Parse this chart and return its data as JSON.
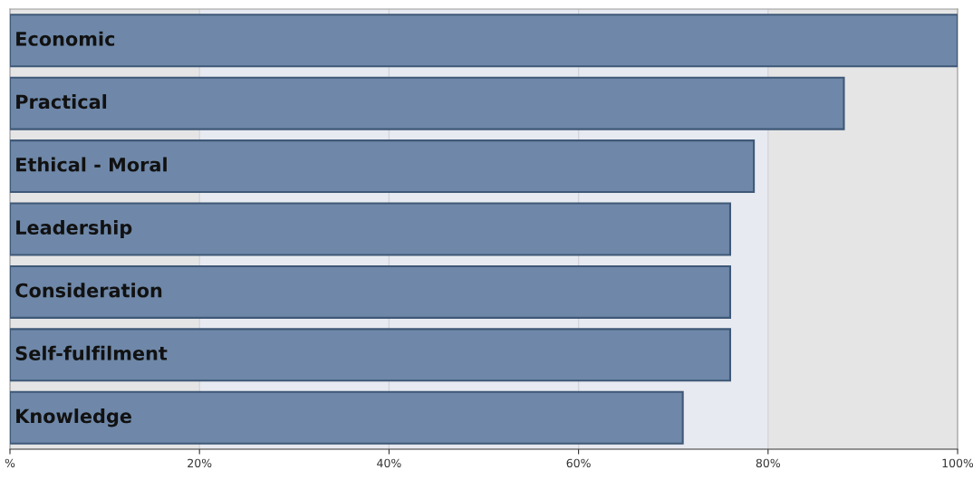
{
  "chart_data": {
    "type": "bar",
    "orientation": "horizontal",
    "categories": [
      "Economic",
      "Practical",
      "Ethical - Moral",
      "Leadership",
      "Consideration",
      "Self-fulfilment",
      "Knowledge"
    ],
    "values": [
      100,
      88,
      78.5,
      76,
      76,
      76,
      71
    ],
    "color": "#6f88a9",
    "xlim": [
      0,
      100
    ],
    "xticks": [
      {
        "value": 0,
        "label": "%"
      },
      {
        "value": 20,
        "label": "20%"
      },
      {
        "value": 40,
        "label": "40%"
      },
      {
        "value": 60,
        "label": "60%"
      },
      {
        "value": 80,
        "label": "80%"
      },
      {
        "value": 100,
        "label": "100%"
      }
    ],
    "bands": [
      {
        "axis": "x",
        "from": 20,
        "to": 80,
        "color": "#e7eaf0"
      }
    ],
    "grid": "x"
  }
}
